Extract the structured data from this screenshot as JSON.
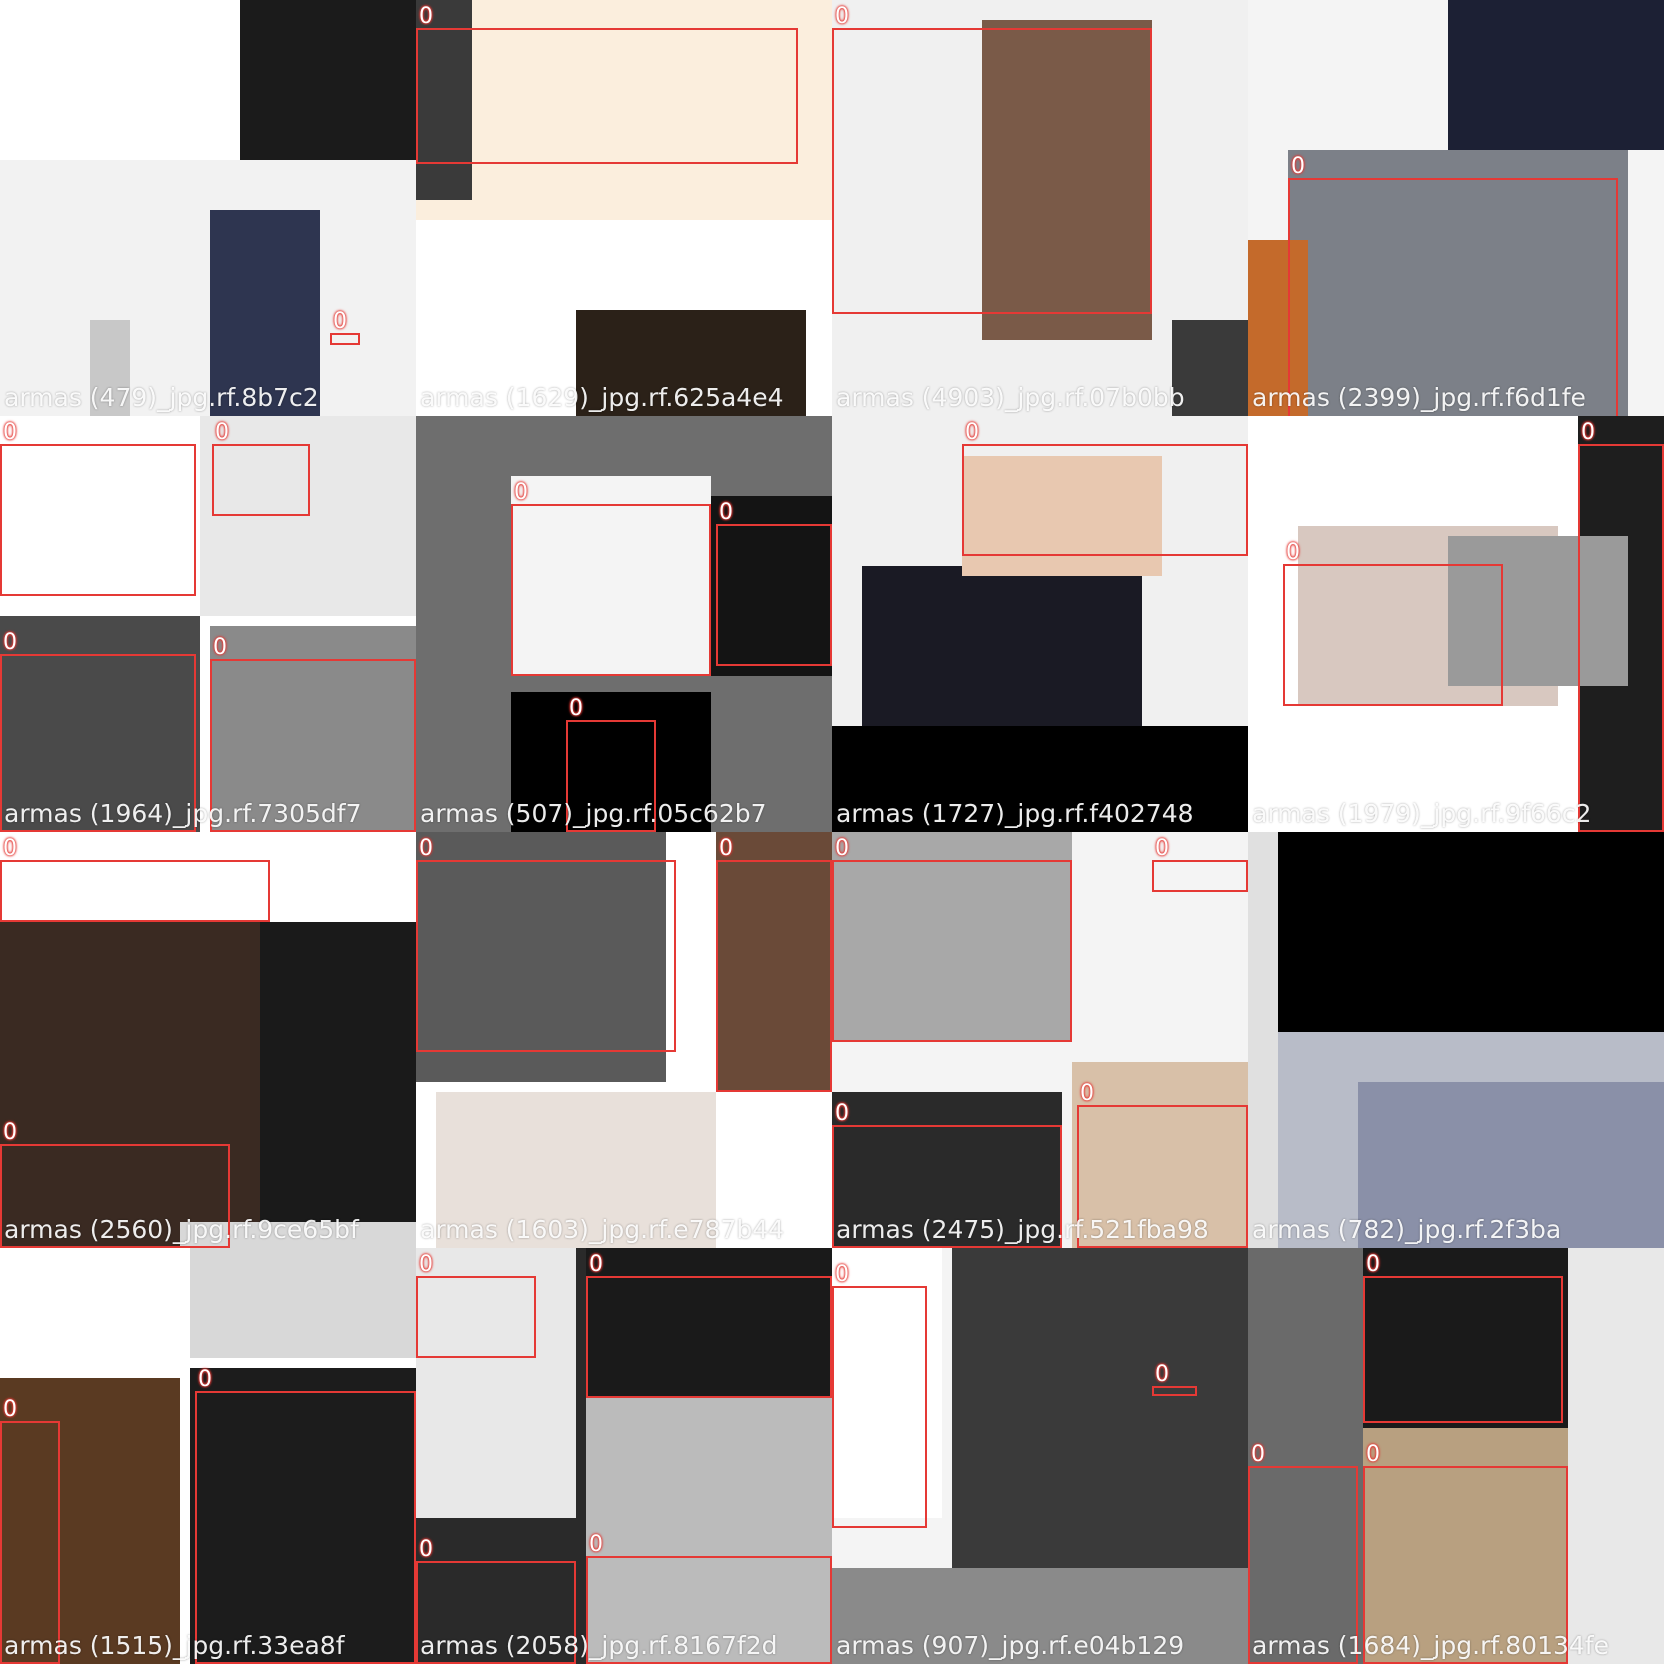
{
  "class_label": "0",
  "box_color": "#e53935",
  "tiles": [
    {
      "name": "tile-1",
      "filename": "armas (479)_jpg.rf.8b7c2",
      "regions": [
        "#ffffff",
        "#1b1b1b",
        "#f2f2f2",
        "#2e3550",
        "#c8c8c8"
      ],
      "box_count": 1
    },
    {
      "name": "tile-2",
      "filename": "armas (1629)_jpg.rf.625a4e4",
      "regions": [
        "#fbeedd",
        "#3a3a3a",
        "#ffffff",
        "#2b2118"
      ],
      "box_count": 1
    },
    {
      "name": "tile-3",
      "filename": "armas (4903)_jpg.rf.07b0bb",
      "regions": [
        "#f0f0f0",
        "#7a5a48",
        "#3a3a3a"
      ],
      "box_count": 1
    },
    {
      "name": "tile-4",
      "filename": "armas (2399)_jpg.rf.f6d1fe",
      "regions": [
        "#f4f4f4",
        "#1c2034",
        "#7c8088",
        "#c46a2b"
      ],
      "box_count": 1
    },
    {
      "name": "tile-5",
      "filename": "armas (1964)_jpg.rf.7305df7",
      "regions": [
        "#ffffff",
        "#e8e8e8",
        "#4a4a4a",
        "#8a8a8a"
      ],
      "box_count": 4
    },
    {
      "name": "tile-6",
      "filename": "armas (507)_jpg.rf.05c62b7",
      "regions": [
        "#6e6e6e",
        "#f4f4f4",
        "#000000",
        "#141414"
      ],
      "box_count": 3
    },
    {
      "name": "tile-7",
      "filename": "armas (1727)_jpg.rf.f402748",
      "regions": [
        "#f0f0f0",
        "#1a1a24",
        "#e8c8b0",
        "#000000"
      ],
      "box_count": 1
    },
    {
      "name": "tile-8",
      "filename": "armas (1979)_jpg.rf.9f66c2",
      "regions": [
        "#ffffff",
        "#d8c8c0",
        "#1e1e1e",
        "#9a9a9a"
      ],
      "box_count": 2
    },
    {
      "name": "tile-9",
      "filename": "armas (2560)_jpg.rf.9ce65bf",
      "regions": [
        "#ffffff",
        "#3a2a22",
        "#1a1a1a",
        "#d8d8d8"
      ],
      "box_count": 2
    },
    {
      "name": "tile-10",
      "filename": "armas (1603)_jpg.rf.e787b44",
      "regions": [
        "#ffffff",
        "#5a5a5a",
        "#6a4a38",
        "#e8e0da"
      ],
      "box_count": 2
    },
    {
      "name": "tile-11",
      "filename": "armas (2475)_jpg.rf.521fba98",
      "regions": [
        "#f4f4f4",
        "#a8a8a8",
        "#2a2a2a",
        "#d8c0a8"
      ],
      "box_count": 4
    },
    {
      "name": "tile-12",
      "filename": "armas (782)_jpg.rf.2f3ba",
      "regions": [
        "#000000",
        "#b8bcc8",
        "#8a90a8",
        "#e0e0e0"
      ],
      "box_count": 0
    },
    {
      "name": "tile-13",
      "filename": "armas (1515)_jpg.rf.33ea8f",
      "regions": [
        "#ffffff",
        "#5a3a22",
        "#1c1c1c",
        "#d8d8d8"
      ],
      "box_count": 2
    },
    {
      "name": "tile-14",
      "filename": "armas (2058)_jpg.rf.8167f2d",
      "regions": [
        "#2a2a2a",
        "#e8e8e8",
        "#1a1a1a",
        "#bbbbbb"
      ],
      "box_count": 4
    },
    {
      "name": "tile-15",
      "filename": "armas (907)_jpg.rf.e04b129",
      "regions": [
        "#f4f4f4",
        "#3a3a3a",
        "#ffffff",
        "#8a8a8a"
      ],
      "box_count": 2
    },
    {
      "name": "tile-16",
      "filename": "armas (1684)_jpg.rf.80134fe",
      "regions": [
        "#6a6a6a",
        "#e8e8e8",
        "#1a1a1a",
        "#b8a080"
      ],
      "box_count": 3
    }
  ]
}
